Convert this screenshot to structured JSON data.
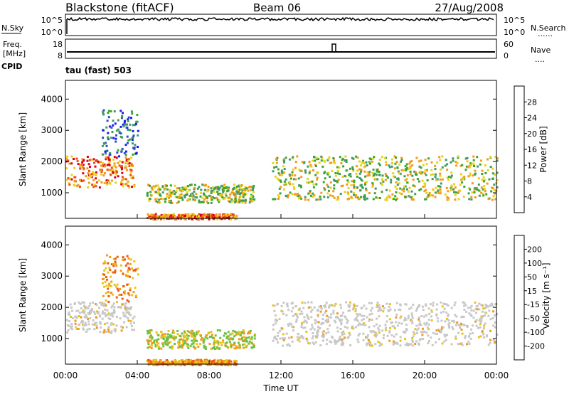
{
  "header": {
    "station": "Blackstone (fitACF)",
    "beam": "Beam 06",
    "date": "27/Aug/2008"
  },
  "strip_panels": {
    "nsky_label": "N.Sky",
    "nsky_ticks": [
      "10^5",
      "10^0"
    ],
    "nsearch_label": "N.Search",
    "nsearch_ticks": [
      "10^5",
      "10^0"
    ],
    "freq_label": "Freq.",
    "freq_unit": "[MHz]",
    "freq_ticks": [
      "18",
      "8"
    ],
    "nave_label": "Nave",
    "nave_ticks": [
      "60",
      "0"
    ],
    "cpid_label": "CPID",
    "cpid_value": "tau (fast) 503"
  },
  "chart_data": [
    {
      "type": "heatmap",
      "name": "power",
      "ylabel": "Slant Range [km]",
      "ylim": [
        180,
        4600
      ],
      "yticks": [
        1000,
        2000,
        3000,
        4000
      ],
      "xlabel": "",
      "xlim": [
        0,
        24
      ],
      "colorbar": {
        "title": "Power [dB]",
        "ticks": [
          "4",
          "8",
          "12",
          "16",
          "20",
          "24",
          "28"
        ],
        "colors": [
          "#1a1aff",
          "#2a4fc8",
          "#3f9a6a",
          "#3aa62c",
          "#e8d21a",
          "#f29a1a",
          "#ef4a14",
          "#e0001b"
        ]
      },
      "echo_regions": [
        {
          "t": [
            0.0,
            3.8
          ],
          "r": [
            1200,
            2200
          ],
          "level": "high"
        },
        {
          "t": [
            2.0,
            4.0
          ],
          "r": [
            2200,
            3700
          ],
          "level": "low"
        },
        {
          "t": [
            4.5,
            10.5
          ],
          "r": [
            700,
            1300
          ],
          "level": "mid"
        },
        {
          "t": [
            4.5,
            9.5
          ],
          "r": [
            180,
            350
          ],
          "level": "high"
        },
        {
          "t": [
            11.5,
            24.0
          ],
          "r": [
            800,
            2200
          ],
          "level": "mid"
        }
      ]
    },
    {
      "type": "heatmap",
      "name": "velocity",
      "ylabel": "Slant Range [km]",
      "ylim": [
        180,
        4600
      ],
      "yticks": [
        1000,
        2000,
        3000,
        4000
      ],
      "xlabel": "Time UT",
      "xlim": [
        0,
        24
      ],
      "xticks": [
        "00:00",
        "04:00",
        "08:00",
        "12:00",
        "16:00",
        "20:00",
        "00:00"
      ],
      "colorbar": {
        "title": "Velocity [m s⁻¹]",
        "ticks": [
          "200",
          "100",
          "50",
          "15",
          "-15",
          "-50",
          "-100",
          "-200"
        ],
        "colors": [
          "#2245c8",
          "#2a6f9a",
          "#3f8a5a",
          "#6cc043",
          "#cccccc",
          "#e8c41a",
          "#f29a1a",
          "#ef5a14",
          "#e0001b"
        ]
      },
      "echo_regions": [
        {
          "t": [
            0.0,
            3.8
          ],
          "r": [
            1200,
            2200
          ],
          "level": "ground"
        },
        {
          "t": [
            2.0,
            4.0
          ],
          "r": [
            2200,
            3700
          ],
          "level": "neg"
        },
        {
          "t": [
            4.5,
            10.5
          ],
          "r": [
            700,
            1300
          ],
          "level": "pos"
        },
        {
          "t": [
            4.5,
            9.5
          ],
          "r": [
            180,
            350
          ],
          "level": "neg"
        },
        {
          "t": [
            11.5,
            24.0
          ],
          "r": [
            800,
            2200
          ],
          "level": "ground"
        }
      ]
    }
  ]
}
